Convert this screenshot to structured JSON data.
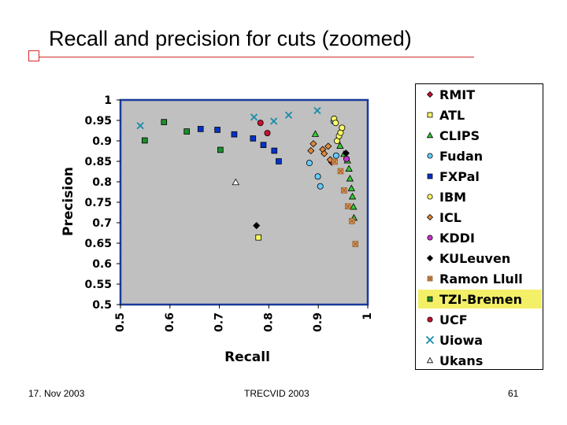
{
  "slide": {
    "title": "Recall and precision for cuts (zoomed)",
    "footer_left": "17. Nov 2003",
    "footer_center": "TRECVID 2003",
    "footer_right": "61"
  },
  "chart_data": {
    "type": "scatter",
    "title": "",
    "xlabel": "Recall",
    "ylabel": "Precision",
    "xlim": [
      0.5,
      1.0
    ],
    "ylim": [
      0.5,
      1.0
    ],
    "xticks": [
      "0.5",
      "0.6",
      "0.7",
      "0.8",
      "0.9",
      "1"
    ],
    "yticks": [
      "1",
      "0.95",
      "0.9",
      "0.85",
      "0.8",
      "0.75",
      "0.7",
      "0.65",
      "0.6",
      "0.55",
      "0.5"
    ],
    "grid": false,
    "legend_position": "right",
    "highlighted_series": "TZI-Bremen",
    "colors": {
      "plot_bg": "#c0c0c0",
      "plot_border": "#1a3a9a",
      "highlight": "#f3ef67"
    },
    "series": [
      {
        "name": "RMIT",
        "marker": "diamond",
        "color": "#c8102e",
        "points": [
          [
            0.927,
            0.848
          ]
        ]
      },
      {
        "name": "ATL",
        "marker": "square",
        "color": "#ffff66",
        "points": [
          [
            0.779,
            0.664
          ]
        ]
      },
      {
        "name": "CLIPS",
        "marker": "triangle",
        "color": "#33cc33",
        "points": [
          [
            0.894,
            0.917
          ],
          [
            0.944,
            0.888
          ],
          [
            0.952,
            0.868
          ],
          [
            0.959,
            0.852
          ],
          [
            0.962,
            0.832
          ],
          [
            0.964,
            0.808
          ],
          [
            0.967,
            0.784
          ],
          [
            0.969,
            0.764
          ],
          [
            0.971,
            0.739
          ],
          [
            0.972,
            0.712
          ]
        ]
      },
      {
        "name": "Fudan",
        "marker": "circle",
        "color": "#66ccff",
        "points": [
          [
            0.882,
            0.846
          ],
          [
            0.899,
            0.813
          ],
          [
            0.904,
            0.789
          ],
          [
            0.931,
            0.948
          ],
          [
            0.936,
            0.864
          ]
        ]
      },
      {
        "name": "FXPal",
        "marker": "square",
        "color": "#0033cc",
        "points": [
          [
            0.662,
            0.929
          ],
          [
            0.696,
            0.927
          ],
          [
            0.73,
            0.916
          ],
          [
            0.768,
            0.906
          ],
          [
            0.789,
            0.89
          ],
          [
            0.811,
            0.876
          ],
          [
            0.82,
            0.85
          ]
        ]
      },
      {
        "name": "IBM",
        "marker": "circle",
        "color": "#ffff66",
        "points": [
          [
            0.932,
            0.954
          ],
          [
            0.935,
            0.944
          ],
          [
            0.938,
            0.9
          ],
          [
            0.942,
            0.912
          ],
          [
            0.945,
            0.92
          ],
          [
            0.948,
            0.932
          ]
        ]
      },
      {
        "name": "ICL",
        "marker": "diamond",
        "color": "#e08a3a",
        "points": [
          [
            0.885,
            0.876
          ],
          [
            0.89,
            0.893
          ],
          [
            0.909,
            0.879
          ],
          [
            0.912,
            0.869
          ],
          [
            0.92,
            0.887
          ],
          [
            0.924,
            0.854
          ]
        ]
      },
      {
        "name": "KDDI",
        "marker": "circle",
        "color": "#cc33cc",
        "points": [
          [
            0.957,
            0.856
          ]
        ]
      },
      {
        "name": "KULeuven",
        "marker": "diamond",
        "color": "#000000",
        "points": [
          [
            0.775,
            0.693
          ],
          [
            0.956,
            0.87
          ]
        ]
      },
      {
        "name": "Ramon Llull",
        "marker": "square-x",
        "color": "#e89a5a",
        "points": [
          [
            0.933,
            0.849
          ],
          [
            0.945,
            0.826
          ],
          [
            0.952,
            0.779
          ],
          [
            0.96,
            0.74
          ],
          [
            0.968,
            0.704
          ],
          [
            0.975,
            0.648
          ]
        ]
      },
      {
        "name": "TZI-Bremen",
        "marker": "square",
        "color": "#1e8c2e",
        "points": [
          [
            0.549,
            0.901
          ],
          [
            0.588,
            0.946
          ],
          [
            0.634,
            0.923
          ],
          [
            0.702,
            0.878
          ]
        ]
      },
      {
        "name": "UCF",
        "marker": "circle",
        "color": "#c8102e",
        "points": [
          [
            0.783,
            0.944
          ],
          [
            0.797,
            0.919
          ]
        ]
      },
      {
        "name": "Uiowa",
        "marker": "x",
        "color": "#1a8caa",
        "points": [
          [
            0.54,
            0.937
          ],
          [
            0.77,
            0.958
          ],
          [
            0.81,
            0.948
          ],
          [
            0.84,
            0.963
          ],
          [
            0.898,
            0.974
          ]
        ]
      },
      {
        "name": "Ukans",
        "marker": "triangle",
        "color": "#ffffff",
        "points": [
          [
            0.733,
            0.799
          ]
        ]
      }
    ]
  }
}
